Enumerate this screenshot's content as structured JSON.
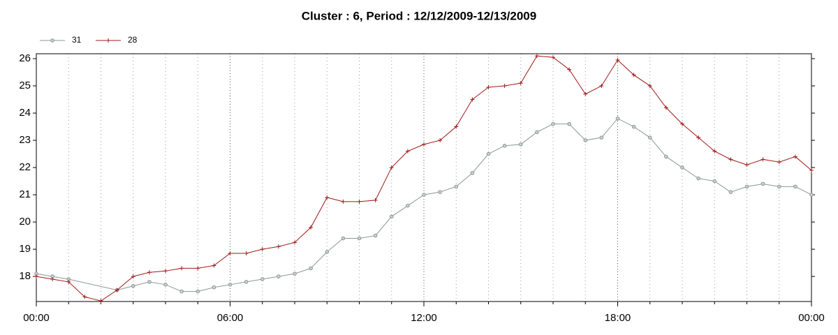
{
  "chart_data": {
    "type": "line",
    "title": "Cluster : 6, Period : 12/12/2009-12/13/2009",
    "xlim": [
      0,
      24
    ],
    "xticks": [
      {
        "value": 0,
        "label": "00:00"
      },
      {
        "value": 6,
        "label": "06:00"
      },
      {
        "value": 12,
        "label": "12:00"
      },
      {
        "value": 18,
        "label": "18:00"
      },
      {
        "value": 24,
        "label": "00:00"
      }
    ],
    "xminorticks": [
      1,
      2,
      3,
      4,
      5,
      7,
      8,
      9,
      10,
      11,
      13,
      14,
      15,
      16,
      17,
      19,
      20,
      21,
      22,
      23
    ],
    "ylim": [
      17.08,
      26.18
    ],
    "yticks": [
      18,
      19,
      20,
      21,
      22,
      23,
      24,
      25,
      26
    ],
    "grid": true,
    "legend": "top-left",
    "series": [
      {
        "name": "31",
        "color": "#8c9696",
        "marker": "circle",
        "x": [
          0,
          0.5,
          1,
          2.5,
          3,
          3.5,
          4,
          4.5,
          5,
          5.5,
          6,
          6.5,
          7,
          7.5,
          8,
          8.5,
          9,
          9.5,
          10,
          10.5,
          11,
          11.5,
          12,
          12.5,
          13,
          13.5,
          14,
          14.5,
          15,
          15.5,
          16,
          16.5,
          17,
          17.5,
          18,
          18.5,
          19,
          19.5,
          20,
          20.5,
          21,
          21.5,
          22,
          22.5,
          23,
          23.5,
          24
        ],
        "values": [
          18.1,
          18.0,
          17.9,
          17.5,
          17.65,
          17.8,
          17.7,
          17.45,
          17.45,
          17.6,
          17.7,
          17.8,
          17.9,
          18.0,
          18.1,
          18.3,
          18.9,
          19.4,
          19.4,
          19.5,
          20.2,
          20.6,
          21.0,
          21.1,
          21.3,
          21.8,
          22.5,
          22.8,
          22.85,
          23.3,
          23.6,
          23.6,
          23.0,
          23.1,
          23.8,
          23.5,
          23.1,
          22.4,
          22.0,
          21.6,
          21.5,
          21.1,
          21.3,
          21.4,
          21.3,
          21.3,
          21.0
        ]
      },
      {
        "name": "28",
        "color": "#a01818",
        "marker": "plus",
        "x": [
          0,
          0.5,
          1,
          1.5,
          2,
          2.5,
          3,
          3.5,
          4,
          4.5,
          5,
          5.5,
          6,
          6.5,
          7,
          7.5,
          8,
          8.5,
          9,
          9.5,
          10,
          10.5,
          11,
          11.5,
          12,
          12.5,
          13,
          13.5,
          14,
          14.5,
          15,
          15.5,
          16,
          16.5,
          17,
          17.5,
          18,
          18.5,
          19,
          19.5,
          20,
          20.5,
          21,
          21.5,
          22,
          22.5,
          23,
          23.5,
          24
        ],
        "values": [
          18.0,
          17.9,
          17.8,
          17.25,
          17.1,
          17.5,
          18.0,
          18.15,
          18.2,
          18.3,
          18.3,
          18.4,
          18.85,
          18.85,
          19.0,
          19.1,
          19.25,
          19.8,
          20.9,
          20.75,
          20.75,
          20.8,
          22.0,
          22.6,
          22.85,
          23.0,
          23.5,
          24.5,
          24.95,
          25.0,
          25.1,
          26.1,
          26.05,
          25.6,
          24.7,
          25.0,
          25.95,
          25.4,
          25.0,
          24.2,
          23.6,
          23.1,
          22.6,
          22.3,
          22.1,
          22.3,
          22.2,
          22.4,
          21.9
        ]
      }
    ]
  }
}
